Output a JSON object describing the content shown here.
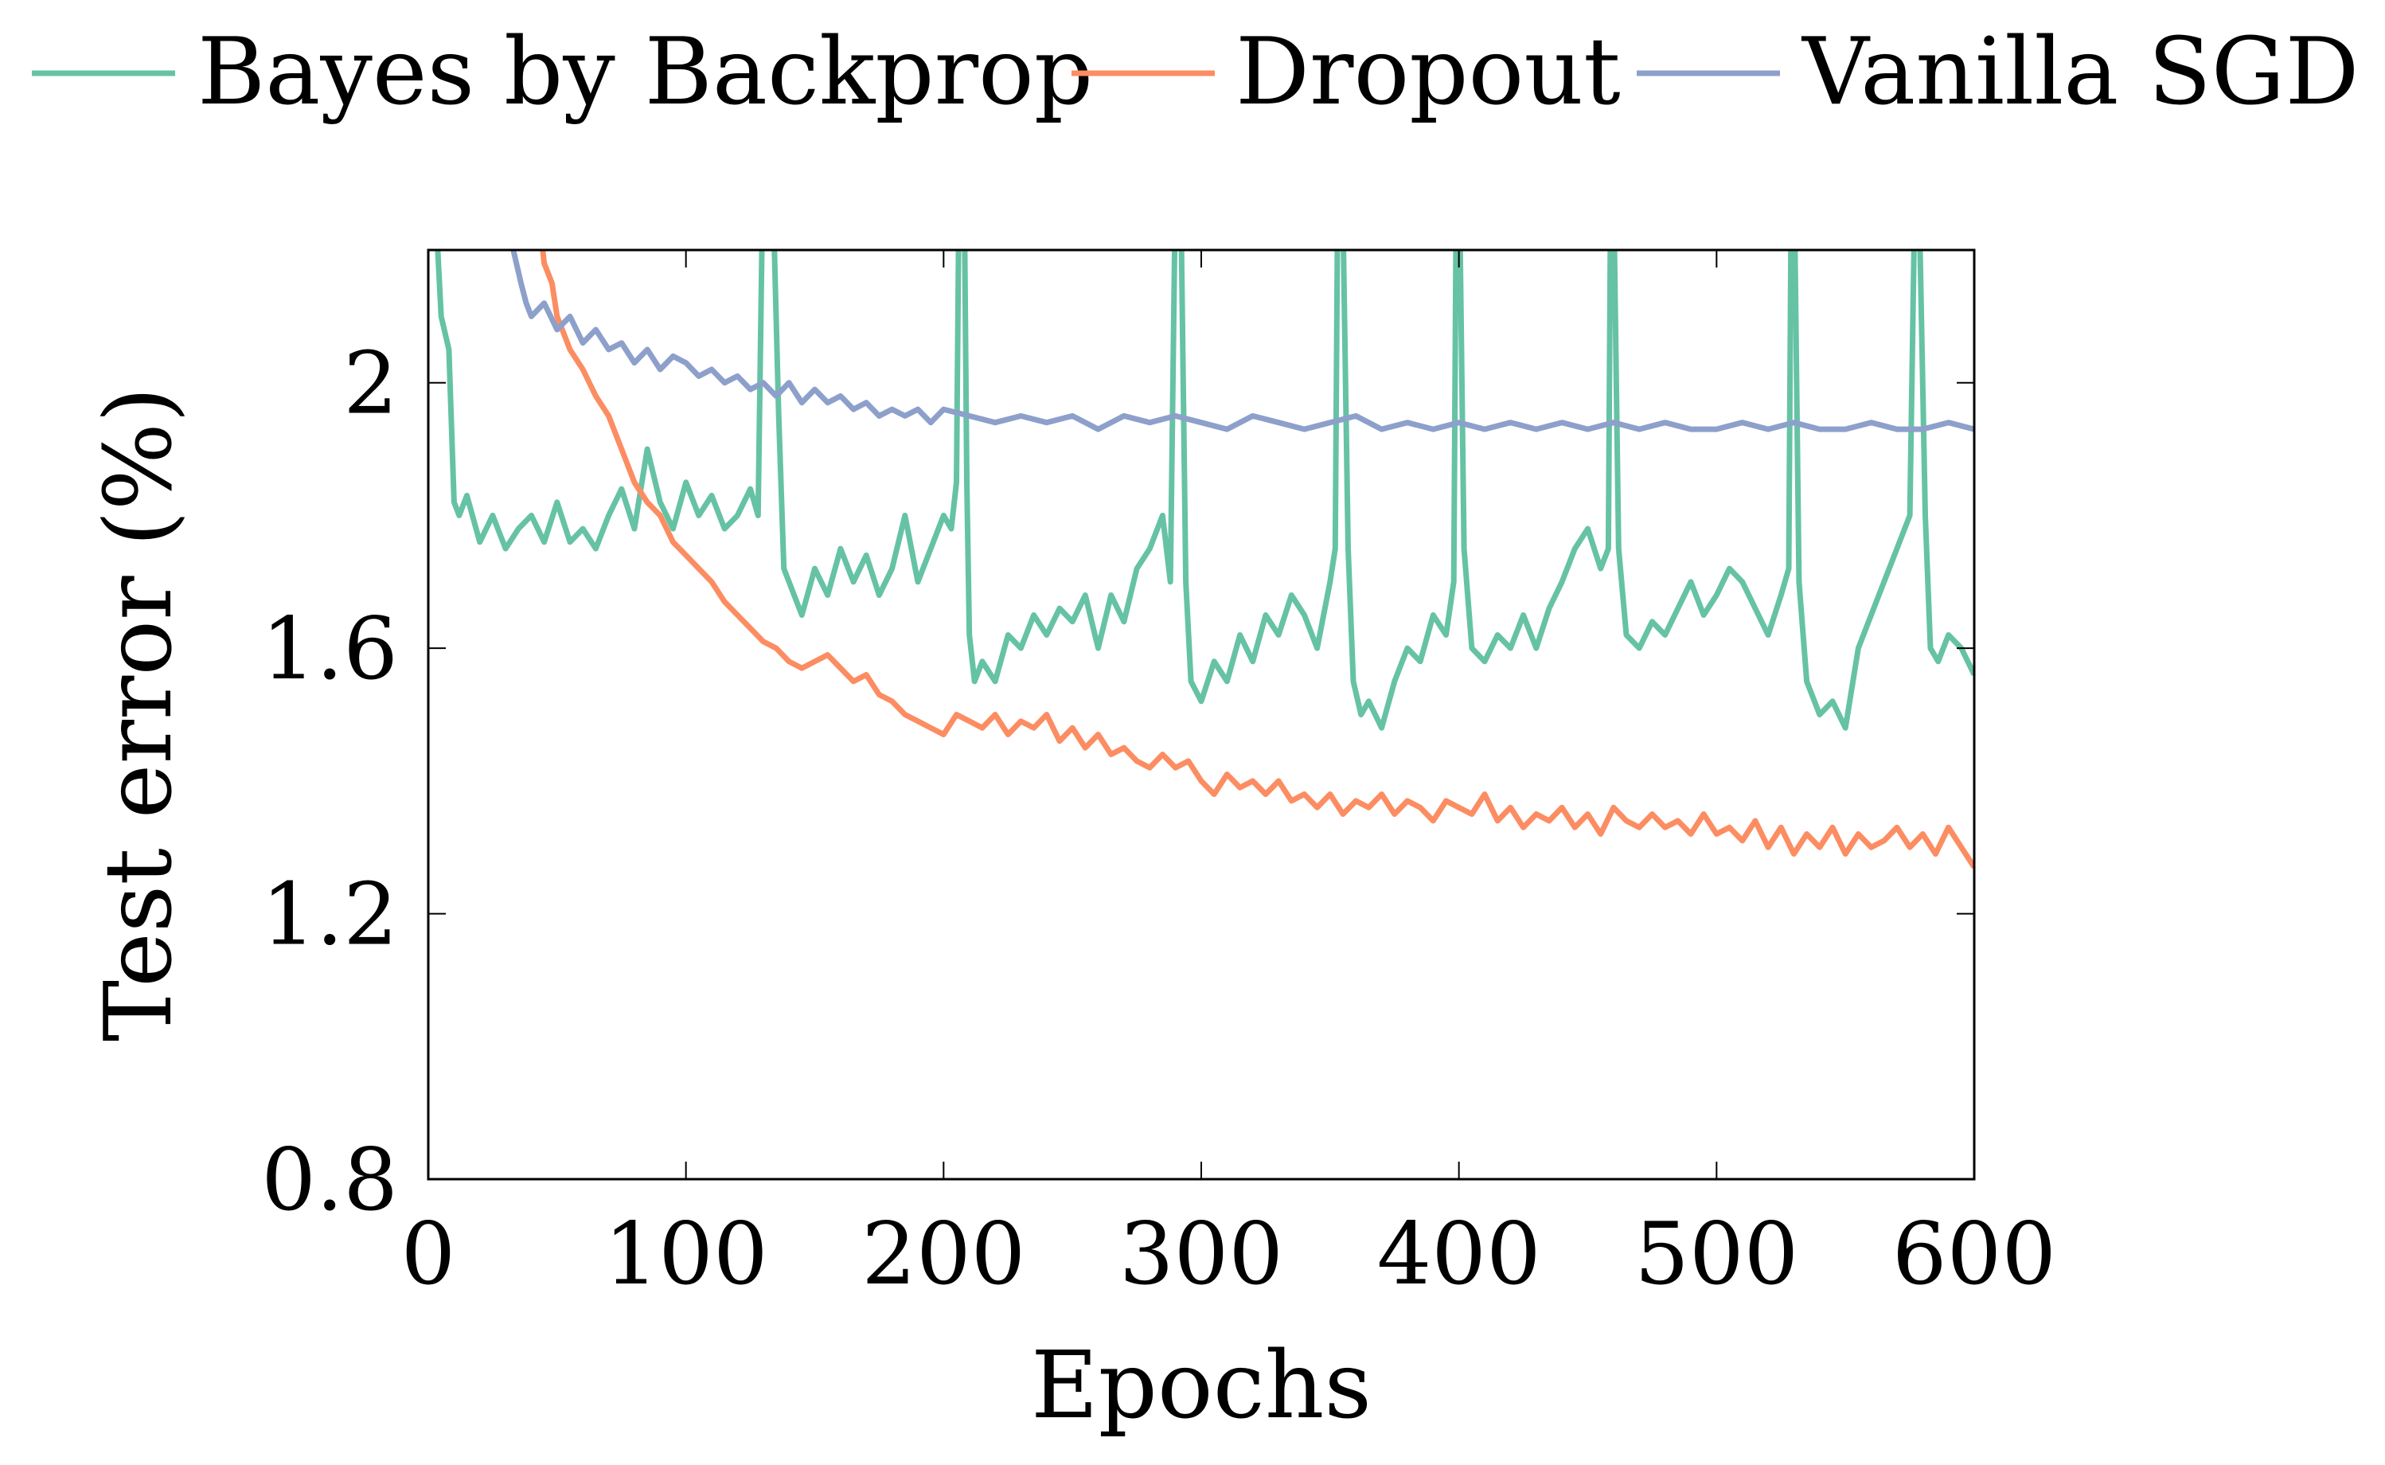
{
  "chart_data": {
    "type": "line",
    "title": "",
    "xlabel": "Epochs",
    "ylabel": "Test error (%)",
    "xlim": [
      0,
      600
    ],
    "ylim": [
      0.8,
      2.2
    ],
    "xticks": [
      0,
      100,
      200,
      300,
      400,
      500,
      600
    ],
    "xtick_labels": [
      "0",
      "100",
      "200",
      "300",
      "400",
      "500",
      "600"
    ],
    "yticks": [
      0.8,
      1.2,
      1.6,
      2.0
    ],
    "ytick_labels": [
      "0.8",
      "1.2",
      "1.6",
      "2"
    ],
    "grid": false,
    "legend_position": "top",
    "series": [
      {
        "name": "Bayes by Backprop",
        "color": "#66c2a5",
        "x": [
          0,
          3,
          5,
          8,
          10,
          12,
          15,
          20,
          25,
          30,
          35,
          40,
          45,
          50,
          55,
          60,
          65,
          70,
          75,
          80,
          85,
          90,
          95,
          100,
          105,
          110,
          115,
          120,
          125,
          128,
          130,
          132,
          134,
          136,
          138,
          140,
          145,
          150,
          155,
          160,
          165,
          170,
          175,
          180,
          185,
          190,
          195,
          200,
          203,
          205,
          206,
          207,
          208,
          209,
          210,
          212,
          215,
          220,
          225,
          230,
          235,
          240,
          245,
          250,
          255,
          260,
          265,
          270,
          275,
          280,
          285,
          288,
          290,
          291,
          292,
          294,
          296,
          300,
          305,
          310,
          315,
          320,
          325,
          330,
          335,
          340,
          345,
          350,
          352,
          353,
          354,
          355,
          357,
          359,
          362,
          365,
          370,
          375,
          380,
          385,
          390,
          395,
          398,
          399,
          400,
          402,
          405,
          410,
          415,
          420,
          425,
          430,
          435,
          440,
          445,
          450,
          455,
          458,
          459,
          460,
          462,
          465,
          470,
          475,
          480,
          485,
          490,
          495,
          500,
          505,
          510,
          515,
          520,
          525,
          528,
          529,
          530,
          532,
          535,
          540,
          545,
          550,
          555,
          560,
          565,
          570,
          575,
          577,
          578,
          579,
          581,
          583,
          586,
          590,
          595,
          600
        ],
        "values": [
          2.3,
          2.25,
          2.1,
          2.05,
          1.82,
          1.8,
          1.83,
          1.76,
          1.8,
          1.75,
          1.78,
          1.8,
          1.76,
          1.82,
          1.76,
          1.78,
          1.75,
          1.8,
          1.84,
          1.78,
          1.9,
          1.82,
          1.78,
          1.85,
          1.8,
          1.83,
          1.78,
          1.8,
          1.84,
          1.8,
          2.35,
          2.3,
          2.25,
          1.95,
          1.72,
          1.7,
          1.65,
          1.72,
          1.68,
          1.75,
          1.7,
          1.74,
          1.68,
          1.72,
          1.8,
          1.7,
          1.75,
          1.8,
          1.78,
          1.85,
          2.3,
          2.35,
          2.3,
          1.85,
          1.62,
          1.55,
          1.58,
          1.55,
          1.62,
          1.6,
          1.65,
          1.62,
          1.66,
          1.64,
          1.68,
          1.6,
          1.68,
          1.64,
          1.72,
          1.75,
          1.8,
          1.7,
          2.3,
          2.35,
          2.3,
          1.7,
          1.55,
          1.52,
          1.58,
          1.55,
          1.62,
          1.58,
          1.65,
          1.62,
          1.68,
          1.65,
          1.6,
          1.7,
          1.75,
          2.3,
          2.35,
          2.25,
          1.75,
          1.55,
          1.5,
          1.52,
          1.48,
          1.55,
          1.6,
          1.58,
          1.65,
          1.62,
          1.7,
          2.3,
          2.35,
          1.75,
          1.6,
          1.58,
          1.62,
          1.6,
          1.65,
          1.6,
          1.66,
          1.7,
          1.75,
          1.78,
          1.72,
          1.75,
          2.35,
          2.3,
          1.75,
          1.62,
          1.6,
          1.64,
          1.62,
          1.66,
          1.7,
          1.65,
          1.68,
          1.72,
          1.7,
          1.66,
          1.62,
          1.68,
          1.72,
          2.3,
          2.35,
          1.7,
          1.55,
          1.5,
          1.52,
          1.48,
          1.6,
          1.65,
          1.7,
          1.75,
          1.8,
          2.3,
          2.35,
          2.2,
          1.8,
          1.6,
          1.58,
          1.62,
          1.6,
          1.56
        ]
      },
      {
        "name": "Dropout",
        "color": "#fc8d62",
        "x": [
          40,
          43,
          45,
          48,
          50,
          55,
          60,
          65,
          70,
          75,
          80,
          85,
          90,
          95,
          100,
          105,
          110,
          115,
          120,
          125,
          130,
          135,
          140,
          145,
          150,
          155,
          160,
          165,
          170,
          175,
          180,
          185,
          190,
          195,
          200,
          205,
          210,
          215,
          220,
          225,
          230,
          235,
          240,
          245,
          250,
          255,
          260,
          265,
          270,
          275,
          280,
          285,
          290,
          295,
          300,
          305,
          310,
          315,
          320,
          325,
          330,
          335,
          340,
          345,
          350,
          355,
          360,
          365,
          370,
          375,
          380,
          385,
          390,
          395,
          400,
          405,
          410,
          415,
          420,
          425,
          430,
          435,
          440,
          445,
          450,
          455,
          460,
          465,
          470,
          475,
          480,
          485,
          490,
          495,
          500,
          505,
          510,
          515,
          520,
          525,
          530,
          535,
          540,
          545,
          550,
          555,
          560,
          565,
          570,
          575,
          580,
          585,
          590,
          595,
          600
        ],
        "values": [
          2.3,
          2.25,
          2.18,
          2.15,
          2.1,
          2.05,
          2.02,
          1.98,
          1.95,
          1.9,
          1.85,
          1.82,
          1.8,
          1.76,
          1.74,
          1.72,
          1.7,
          1.67,
          1.65,
          1.63,
          1.61,
          1.6,
          1.58,
          1.57,
          1.58,
          1.59,
          1.57,
          1.55,
          1.56,
          1.53,
          1.52,
          1.5,
          1.49,
          1.48,
          1.47,
          1.5,
          1.49,
          1.48,
          1.5,
          1.47,
          1.49,
          1.48,
          1.5,
          1.46,
          1.48,
          1.45,
          1.47,
          1.44,
          1.45,
          1.43,
          1.42,
          1.44,
          1.42,
          1.43,
          1.4,
          1.38,
          1.41,
          1.39,
          1.4,
          1.38,
          1.4,
          1.37,
          1.38,
          1.36,
          1.38,
          1.35,
          1.37,
          1.36,
          1.38,
          1.35,
          1.37,
          1.36,
          1.34,
          1.37,
          1.36,
          1.35,
          1.38,
          1.34,
          1.36,
          1.33,
          1.35,
          1.34,
          1.36,
          1.33,
          1.35,
          1.32,
          1.36,
          1.34,
          1.33,
          1.35,
          1.33,
          1.34,
          1.32,
          1.35,
          1.32,
          1.33,
          1.31,
          1.34,
          1.3,
          1.33,
          1.29,
          1.32,
          1.3,
          1.33,
          1.29,
          1.32,
          1.3,
          1.31,
          1.33,
          1.3,
          1.32,
          1.29,
          1.33,
          1.3,
          1.27
        ]
      },
      {
        "name": "Vanilla SGD",
        "color": "#8da0cb",
        "x": [
          30,
          33,
          36,
          38,
          40,
          45,
          50,
          55,
          60,
          65,
          70,
          75,
          80,
          85,
          90,
          95,
          100,
          105,
          110,
          115,
          120,
          125,
          130,
          135,
          140,
          145,
          150,
          155,
          160,
          165,
          170,
          175,
          180,
          185,
          190,
          195,
          200,
          210,
          220,
          230,
          240,
          250,
          260,
          270,
          280,
          290,
          300,
          310,
          320,
          330,
          340,
          350,
          360,
          370,
          380,
          390,
          400,
          410,
          420,
          430,
          440,
          450,
          460,
          470,
          480,
          490,
          500,
          510,
          520,
          530,
          540,
          550,
          560,
          570,
          580,
          590,
          600
        ],
        "values": [
          2.25,
          2.2,
          2.15,
          2.12,
          2.1,
          2.12,
          2.08,
          2.1,
          2.06,
          2.08,
          2.05,
          2.06,
          2.03,
          2.05,
          2.02,
          2.04,
          2.03,
          2.01,
          2.02,
          2.0,
          2.01,
          1.99,
          2.0,
          1.98,
          2.0,
          1.97,
          1.99,
          1.97,
          1.98,
          1.96,
          1.97,
          1.95,
          1.96,
          1.95,
          1.96,
          1.94,
          1.96,
          1.95,
          1.94,
          1.95,
          1.94,
          1.95,
          1.93,
          1.95,
          1.94,
          1.95,
          1.94,
          1.93,
          1.95,
          1.94,
          1.93,
          1.94,
          1.95,
          1.93,
          1.94,
          1.93,
          1.94,
          1.93,
          1.94,
          1.93,
          1.94,
          1.93,
          1.94,
          1.93,
          1.94,
          1.93,
          1.93,
          1.94,
          1.93,
          1.94,
          1.93,
          1.93,
          1.94,
          1.93,
          1.93,
          1.94,
          1.93
        ]
      }
    ]
  }
}
